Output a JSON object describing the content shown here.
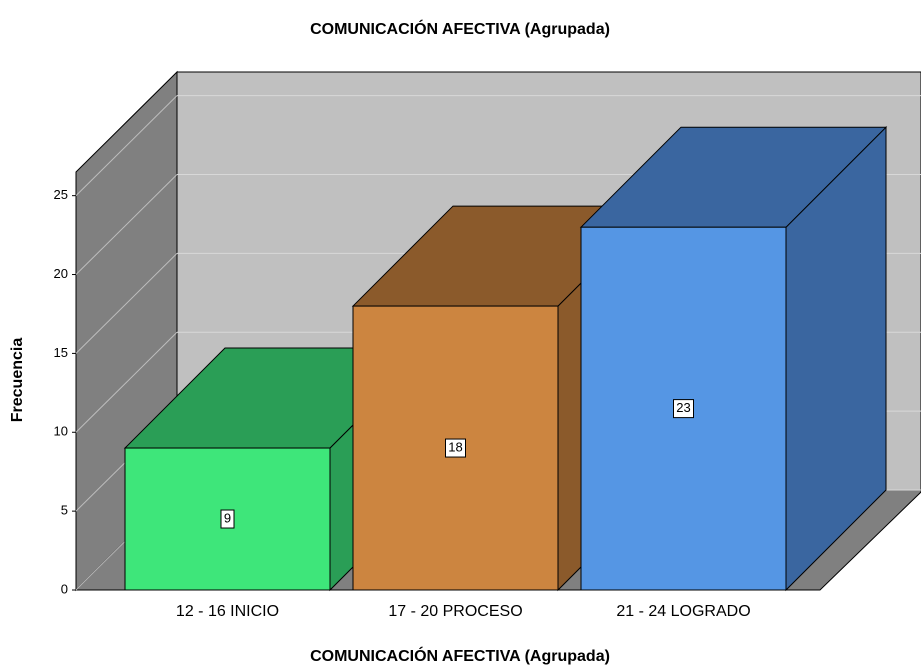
{
  "chart_data": {
    "type": "bar3d",
    "title": "COMUNICACIÓN AFECTIVA (Agrupada)",
    "x_label": "COMUNICACIÓN AFECTIVA (Agrupada)",
    "y_label": "Frecuencia",
    "categories": [
      "12 - 16 INICIO",
      "17 - 20 PROCESO",
      "21 - 24 LOGRADO"
    ],
    "values": [
      9,
      18,
      23
    ],
    "colors": [
      "#3ee67a",
      "#cc8540",
      "#5596e4"
    ],
    "side_colors": [
      "#2a9e56",
      "#8b5a2b",
      "#3a66a0"
    ],
    "ylim": [
      0,
      26.5
    ],
    "yticks": [
      0,
      5,
      10,
      15,
      20,
      25
    ],
    "grid": true
  }
}
